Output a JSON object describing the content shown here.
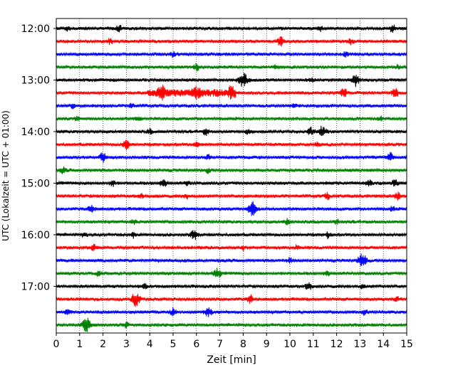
{
  "chart_data": {
    "type": "line",
    "title": "",
    "xlabel": "Zeit  [min]",
    "ylabel": "UTC (Lokalzeit = UTC + 01:00)",
    "xlim": [
      0,
      15
    ],
    "xticks": [
      "0",
      "1",
      "2",
      "3",
      "4",
      "5",
      "6",
      "7",
      "8",
      "9",
      "10",
      "11",
      "12",
      "13",
      "14",
      "15"
    ],
    "ytick_labels": [
      "12:00",
      "13:00",
      "14:00",
      "15:00",
      "16:00",
      "17:00"
    ],
    "grid": "vertical dotted lines at each minute",
    "legend": "none",
    "trace_colors": [
      "#000000",
      "#ff0000",
      "#0000ff",
      "#008000"
    ],
    "traces_start": "12:00",
    "trace_interval_min": 15,
    "traces": [
      {
        "start": "12:00",
        "events": [
          [
            0.5,
            0.3
          ],
          [
            2.7,
            0.4
          ],
          [
            11.3,
            0.3
          ],
          [
            14.4,
            0.5
          ]
        ]
      },
      {
        "start": "12:15",
        "events": [
          [
            2.3,
            0.3
          ],
          [
            9.6,
            0.6
          ],
          [
            12.6,
            0.3
          ]
        ]
      },
      {
        "start": "12:30",
        "events": [
          [
            5.0,
            0.3
          ],
          [
            12.4,
            0.3
          ]
        ]
      },
      {
        "start": "12:45",
        "events": [
          [
            6.0,
            0.4
          ],
          [
            9.4,
            0.3
          ],
          [
            14.6,
            0.3
          ]
        ]
      },
      {
        "start": "13:00",
        "events": [
          [
            8.0,
            1.0
          ],
          [
            12.8,
            0.8
          ],
          [
            10.9,
            0.3
          ]
        ]
      },
      {
        "start": "13:15",
        "events": [
          [
            4.5,
            0.7
          ],
          [
            6.0,
            0.6
          ],
          [
            7.5,
            0.6
          ],
          [
            12.3,
            0.6
          ],
          [
            14.5,
            0.6
          ]
        ]
      },
      {
        "start": "13:30",
        "events": [
          [
            0.7,
            0.3
          ],
          [
            3.2,
            0.3
          ],
          [
            10.2,
            0.3
          ]
        ]
      },
      {
        "start": "13:45",
        "events": [
          [
            0.9,
            0.3
          ],
          [
            3.5,
            0.3
          ],
          [
            13.9,
            0.3
          ]
        ]
      },
      {
        "start": "14:00",
        "events": [
          [
            4.0,
            0.3
          ],
          [
            6.4,
            0.4
          ],
          [
            8.2,
            0.3
          ],
          [
            10.9,
            0.5
          ],
          [
            11.4,
            0.7
          ]
        ]
      },
      {
        "start": "14:15",
        "events": [
          [
            3.0,
            0.6
          ],
          [
            6.0,
            0.4
          ],
          [
            11.2,
            0.3
          ]
        ]
      },
      {
        "start": "14:30",
        "events": [
          [
            2.0,
            0.6
          ],
          [
            6.5,
            0.3
          ],
          [
            14.3,
            0.6
          ]
        ]
      },
      {
        "start": "14:45",
        "events": [
          [
            0.3,
            0.4
          ],
          [
            6.5,
            0.3
          ]
        ]
      },
      {
        "start": "15:00",
        "events": [
          [
            2.4,
            0.4
          ],
          [
            4.6,
            0.6
          ],
          [
            5.6,
            0.3
          ],
          [
            13.4,
            0.4
          ],
          [
            14.5,
            0.4
          ]
        ]
      },
      {
        "start": "15:15",
        "events": [
          [
            3.6,
            0.3
          ],
          [
            5.6,
            0.3
          ],
          [
            11.6,
            0.4
          ],
          [
            14.6,
            0.5
          ]
        ]
      },
      {
        "start": "15:30",
        "events": [
          [
            1.5,
            0.5
          ],
          [
            8.4,
            1.0
          ],
          [
            14.4,
            0.3
          ]
        ]
      },
      {
        "start": "15:45",
        "events": [
          [
            3.3,
            0.3
          ],
          [
            9.9,
            0.4
          ],
          [
            12.0,
            0.3
          ]
        ]
      },
      {
        "start": "16:00",
        "events": [
          [
            1.2,
            0.3
          ],
          [
            3.3,
            0.3
          ],
          [
            5.9,
            0.6
          ],
          [
            11.6,
            0.4
          ]
        ]
      },
      {
        "start": "16:15",
        "events": [
          [
            1.6,
            0.4
          ],
          [
            8.0,
            0.3
          ],
          [
            10.3,
            0.3
          ]
        ]
      },
      {
        "start": "16:30",
        "events": [
          [
            13.1,
            1.0
          ],
          [
            10.0,
            0.3
          ]
        ]
      },
      {
        "start": "16:45",
        "events": [
          [
            1.8,
            0.3
          ],
          [
            6.9,
            0.7
          ],
          [
            11.6,
            0.4
          ]
        ]
      },
      {
        "start": "17:00",
        "events": [
          [
            3.8,
            0.3
          ],
          [
            10.8,
            0.5
          ],
          [
            13.1,
            0.3
          ]
        ]
      },
      {
        "start": "17:15",
        "events": [
          [
            3.4,
            0.9
          ],
          [
            8.3,
            0.5
          ],
          [
            14.6,
            0.3
          ]
        ]
      },
      {
        "start": "17:30",
        "events": [
          [
            0.5,
            0.4
          ],
          [
            5.0,
            0.4
          ],
          [
            6.5,
            0.6
          ],
          [
            13.2,
            0.3
          ]
        ]
      },
      {
        "start": "17:45",
        "events": [
          [
            1.3,
            1.0
          ],
          [
            3.0,
            0.3
          ]
        ]
      }
    ]
  }
}
